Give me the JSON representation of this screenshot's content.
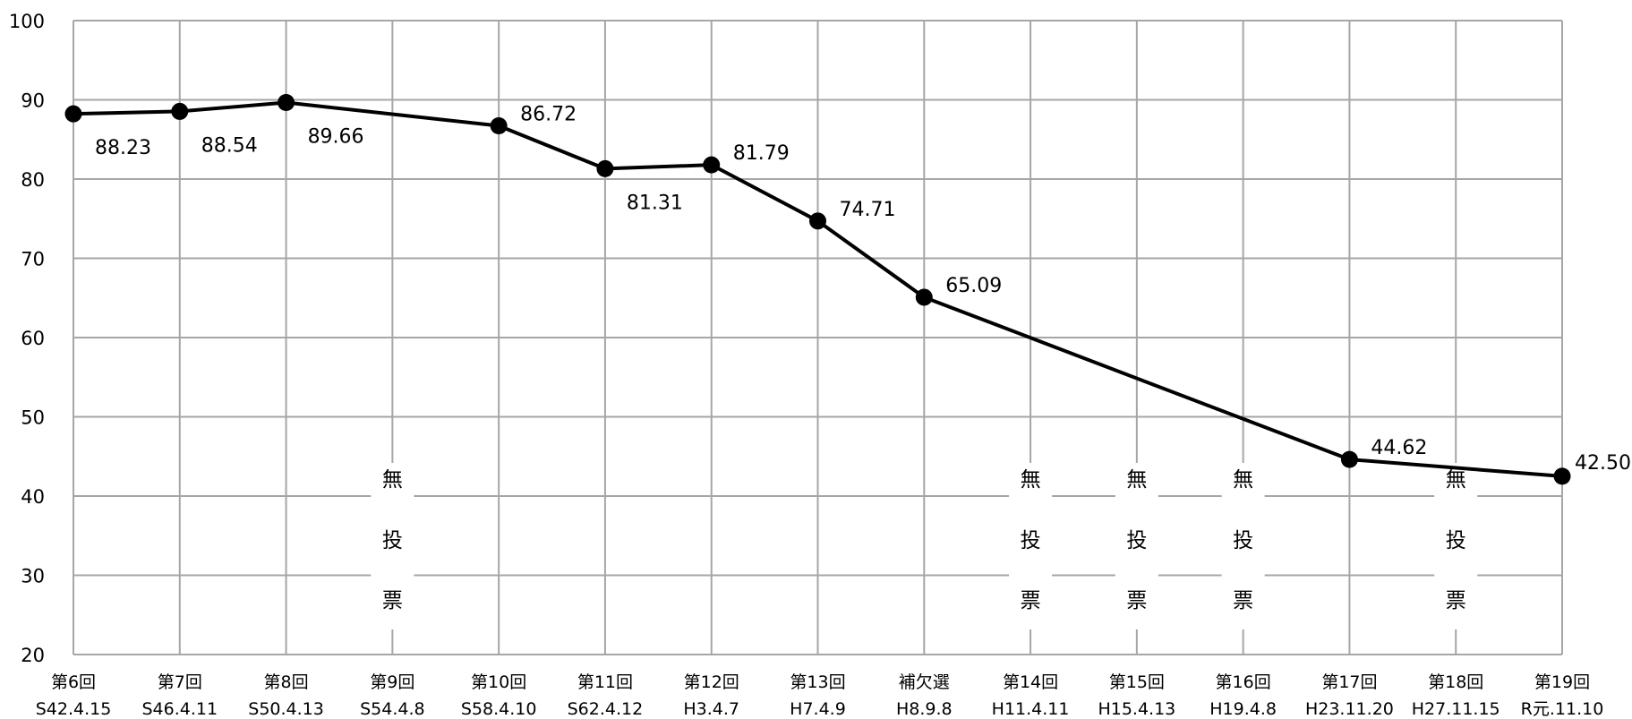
{
  "chart_data": {
    "type": "line",
    "title": "",
    "xlabel": "",
    "ylabel": "",
    "ylim": [
      20,
      100
    ],
    "yticks": [
      20,
      30,
      40,
      50,
      60,
      70,
      80,
      90,
      100
    ],
    "grid": true,
    "categories": [
      {
        "line1": "第6回",
        "line2": "S42.4.15"
      },
      {
        "line1": "第7回",
        "line2": "S46.4.11"
      },
      {
        "line1": "第8回",
        "line2": "S50.4.13"
      },
      {
        "line1": "第9回",
        "line2": "S54.4.8"
      },
      {
        "line1": "第10回",
        "line2": "S58.4.10"
      },
      {
        "line1": "第11回",
        "line2": "S62.4.12"
      },
      {
        "line1": "第12回",
        "line2": "H3.4.7"
      },
      {
        "line1": "第13回",
        "line2": "H7.4.9"
      },
      {
        "line1": "補欠選",
        "line2": "H8.9.8"
      },
      {
        "line1": "第14回",
        "line2": "H11.4.11"
      },
      {
        "line1": "第15回",
        "line2": "H15.4.13"
      },
      {
        "line1": "第16回",
        "line2": "H19.4.8"
      },
      {
        "line1": "第17回",
        "line2": "H23.11.20"
      },
      {
        "line1": "第18回",
        "line2": "H27.11.15"
      },
      {
        "line1": "第19回",
        "line2": "R元.11.10"
      }
    ],
    "series": [
      {
        "values": [
          88.23,
          88.54,
          89.66,
          null,
          86.72,
          81.31,
          81.79,
          74.71,
          65.09,
          null,
          null,
          null,
          44.62,
          null,
          42.5
        ],
        "labels": [
          "88.23",
          "88.54",
          "89.66",
          null,
          "86.72",
          "81.31",
          "81.79",
          "74.71",
          "65.09",
          null,
          null,
          null,
          "44.62",
          null,
          "42.50"
        ]
      }
    ],
    "no_vote": {
      "text": [
        "無",
        "投",
        "票"
      ],
      "indices": [
        3,
        9,
        10,
        11,
        13
      ]
    },
    "colors": {
      "line": "#000000",
      "grid": "#a6a6a6",
      "marker": "#000000"
    }
  }
}
